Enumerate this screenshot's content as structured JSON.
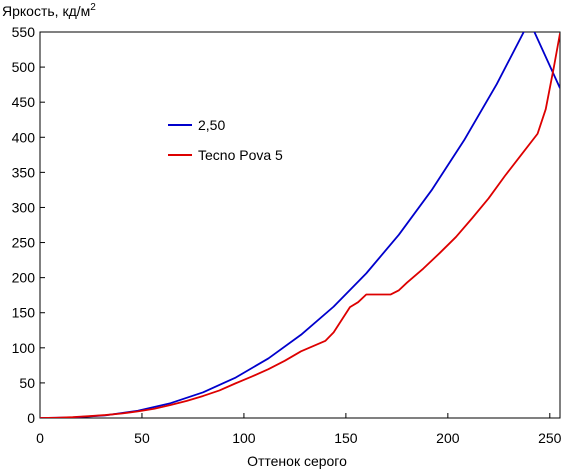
{
  "chart_data": {
    "type": "line",
    "ylabel": "Яркость, кд/м",
    "ylabel_sup": "2",
    "xlabel": "Оттенок серого",
    "xlim": [
      0,
      255
    ],
    "ylim": [
      0,
      550
    ],
    "x_ticks": [
      0,
      50,
      100,
      150,
      200,
      250
    ],
    "y_ticks": [
      0,
      50,
      100,
      150,
      200,
      250,
      300,
      350,
      400,
      450,
      500,
      550
    ],
    "grid": false,
    "legend_position": "center-left",
    "series": [
      {
        "name": "2,50",
        "color": "#0000cc",
        "x": [
          0,
          16,
          32,
          48,
          64,
          80,
          96,
          112,
          128,
          144,
          160,
          176,
          192,
          208,
          224,
          240,
          255
        ],
        "y": [
          0,
          0.7,
          3.8,
          10.3,
          21.1,
          36.6,
          57.7,
          84.9,
          118.6,
          158.7,
          206.1,
          261.2,
          324.4,
          395.9,
          475.8,
          565.6,
          470
        ]
      },
      {
        "name": "Tecno Pova 5",
        "color": "#dd0000",
        "x": [
          0,
          8,
          16,
          24,
          32,
          40,
          48,
          56,
          64,
          72,
          80,
          88,
          96,
          104,
          112,
          120,
          128,
          136,
          140,
          144,
          148,
          152,
          156,
          160,
          164,
          168,
          172,
          176,
          180,
          188,
          196,
          204,
          212,
          220,
          228,
          236,
          244,
          248,
          252,
          255
        ],
        "y": [
          0,
          0.4,
          1.2,
          2.6,
          4.2,
          6.4,
          9.4,
          13.2,
          18.5,
          24.4,
          31.4,
          39.3,
          49.5,
          59.2,
          69.5,
          81.5,
          95,
          105,
          110,
          122,
          140,
          158,
          165,
          176,
          176,
          176,
          176,
          182,
          193,
          213,
          235,
          258,
          285,
          313,
          345,
          375,
          405,
          440,
          500,
          548
        ]
      }
    ]
  }
}
